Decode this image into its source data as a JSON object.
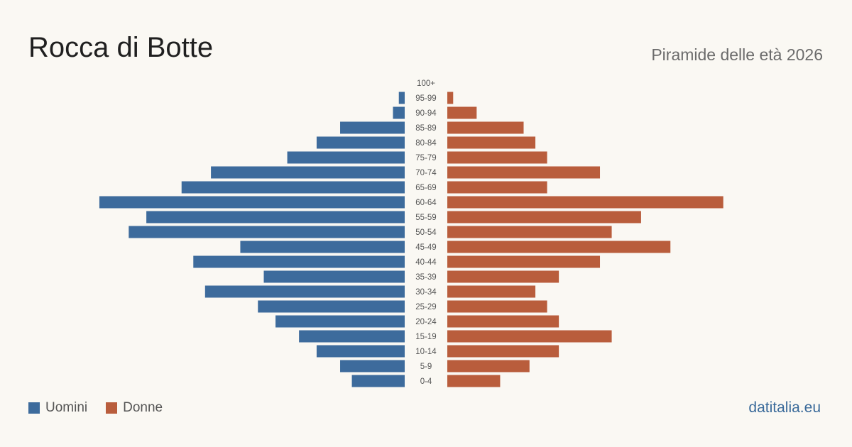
{
  "header": {
    "title": "Rocca di Botte",
    "subtitle": "Piramide delle età 2026"
  },
  "legend": {
    "male_label": "Uomini",
    "female_label": "Donne"
  },
  "brand": "datitalia.eu",
  "colors": {
    "male": "#3d6b9c",
    "female": "#b95d3c",
    "background": "#faf8f3"
  },
  "chart_data": {
    "type": "bar",
    "orientation": "horizontal-pyramid",
    "categories": [
      "100+",
      "95-99",
      "90-94",
      "85-89",
      "80-84",
      "75-79",
      "70-74",
      "65-69",
      "60-64",
      "55-59",
      "50-54",
      "45-49",
      "40-44",
      "35-39",
      "30-34",
      "25-29",
      "20-24",
      "15-19",
      "10-14",
      "5-9",
      "0-4"
    ],
    "series": [
      {
        "name": "Uomini",
        "values": [
          0,
          1,
          2,
          11,
          15,
          20,
          33,
          38,
          52,
          44,
          47,
          28,
          36,
          24,
          34,
          25,
          22,
          18,
          15,
          11,
          9
        ]
      },
      {
        "name": "Donne",
        "values": [
          0,
          1,
          5,
          13,
          15,
          17,
          26,
          17,
          47,
          33,
          28,
          38,
          26,
          19,
          15,
          17,
          19,
          28,
          19,
          14,
          9
        ]
      }
    ]
  }
}
